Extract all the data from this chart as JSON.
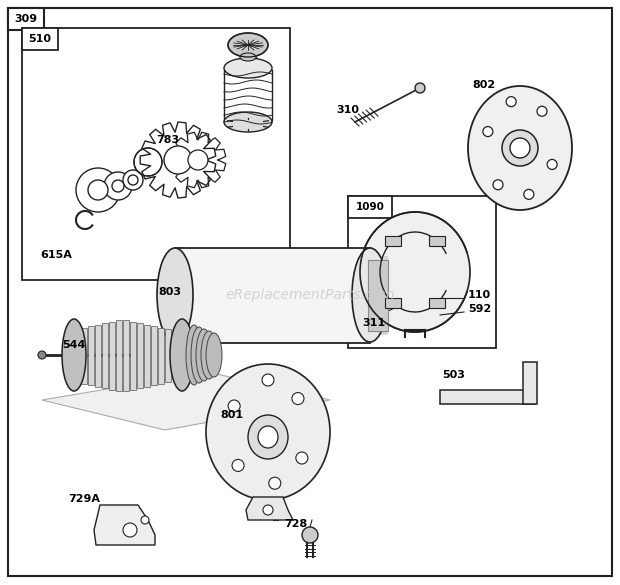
{
  "bg_color": "#ffffff",
  "watermark": "eReplacementParts.com",
  "line_color": "#222222",
  "light_gray": "#bbbbbb",
  "mid_gray": "#888888"
}
